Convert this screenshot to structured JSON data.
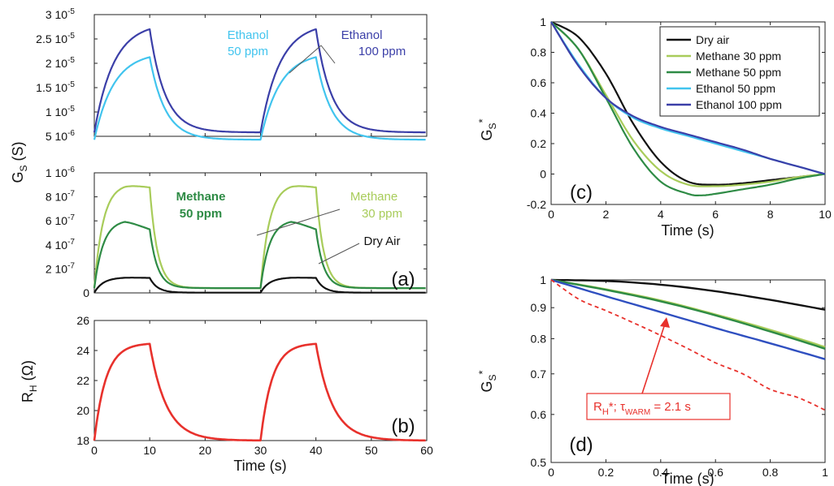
{
  "colors": {
    "ethanol_50": "#41C4EE",
    "ethanol_100": "#3B3FA8",
    "methane_30": "#A8CC5A",
    "methane_50": "#2E8B45",
    "dry_air": "#111111",
    "heater": "#E8312C",
    "ethanol_100_d": "#2F4FC0"
  },
  "chart_data": [
    {
      "id": "a_top",
      "type": "line",
      "ylim": [
        5e-06,
        3e-05
      ],
      "xlim": [
        0,
        60
      ],
      "y_tick_labels": [
        {
          "v": 5e-06,
          "text": "5 10"
        },
        {
          "v": 1e-05,
          "text": "1 10"
        },
        {
          "v": 1.5e-05,
          "text": "1.5 10"
        },
        {
          "v": 2e-05,
          "text": "2 10"
        },
        {
          "v": 2.5e-05,
          "text": "2.5 10"
        },
        {
          "v": 3e-05,
          "text": "3 10"
        }
      ],
      "y_tick_exponents": [
        "-6",
        "-5",
        "-5",
        "-5",
        "-5",
        "-5"
      ],
      "series_params": [
        {
          "color_key": "ethanol_50",
          "base": 4.3e-06,
          "amp": 1.8e-05,
          "tau_rise": 3.5,
          "tau_fall": 2.8
        },
        {
          "color_key": "ethanol_100",
          "base": 5.8e-06,
          "amp": 2.25e-05,
          "tau_rise": 3.5,
          "tau_fall": 2.8
        }
      ],
      "annotations": [
        {
          "lines": [
            "Ethanol",
            "50 ppm"
          ],
          "color_key": "ethanol_50"
        },
        {
          "lines": [
            "Ethanol",
            "100 ppm"
          ],
          "color_key": "ethanol_100"
        }
      ]
    },
    {
      "id": "a_bottom",
      "type": "line",
      "ylim": [
        0,
        1e-06
      ],
      "xlim": [
        0,
        60
      ],
      "y_tick_labels": [
        {
          "v": 0,
          "text": "0"
        },
        {
          "v": 2e-07,
          "text": "2 10"
        },
        {
          "v": 4e-07,
          "text": "4 10"
        },
        {
          "v": 6e-07,
          "text": "6 10"
        },
        {
          "v": 8e-07,
          "text": "8 10"
        },
        {
          "v": 1e-06,
          "text": "1 10"
        }
      ],
      "y_tick_exponents": [
        "",
        "-7",
        "-7",
        "-7",
        "-7",
        "-6"
      ],
      "panel_label": "(a)",
      "series_params": [
        {
          "color_key": "methane_30",
          "base": 4e-08,
          "peak": 9.1e-07,
          "end": 8.8e-07
        },
        {
          "color_key": "methane_50",
          "base": 4e-08,
          "peak": 6.1e-07,
          "end": 5.3e-07
        },
        {
          "color_key": "dry_air",
          "base": 2e-09,
          "peak": 1.3e-07,
          "end": 1.25e-07
        }
      ],
      "annotations": [
        {
          "lines": [
            "Methane",
            "50 ppm"
          ],
          "color_key": "methane_50"
        },
        {
          "lines": [
            "Methane",
            "30 ppm"
          ],
          "color_key": "methane_30"
        },
        {
          "lines": [
            "Dry Air"
          ],
          "color_key": "dry_air"
        }
      ]
    },
    {
      "id": "b",
      "type": "line",
      "ylim": [
        18,
        26
      ],
      "xlim": [
        0,
        60
      ],
      "yticks": [
        18,
        20,
        22,
        24,
        26
      ],
      "xticks": [
        0,
        10,
        20,
        30,
        40,
        50,
        60
      ],
      "panel_label": "(b)",
      "series_params": [
        {
          "color_key": "heater",
          "base": 18.0,
          "amp": 6.5,
          "tau_rise": 2.1,
          "tau_fall": 3.0
        }
      ]
    },
    {
      "id": "c",
      "type": "line",
      "xlim": [
        0,
        10
      ],
      "ylim": [
        -0.2,
        1
      ],
      "xticks": [
        0,
        2,
        4,
        6,
        8,
        10
      ],
      "yticks": [
        -0.2,
        0,
        0.2,
        0.4,
        0.6,
        0.8,
        1
      ],
      "xlabel": "Time (s)",
      "panel_label": "(c)",
      "legend": [
        {
          "name": "Dry air",
          "color_key": "dry_air"
        },
        {
          "name": "Methane 30 ppm",
          "color_key": "methane_30"
        },
        {
          "name": "Methane 50 ppm",
          "color_key": "methane_50"
        },
        {
          "name": "Ethanol 50 ppm",
          "color_key": "ethanol_50"
        },
        {
          "name": "Ethanol 100 ppm",
          "color_key": "ethanol_100"
        }
      ],
      "series": [
        {
          "color_key": "dry_air",
          "x": [
            0,
            1,
            2,
            3,
            4,
            5,
            6,
            7,
            8,
            9,
            10
          ],
          "y": [
            1,
            0.9,
            0.66,
            0.33,
            0.08,
            -0.05,
            -0.07,
            -0.06,
            -0.04,
            -0.02,
            0
          ]
        },
        {
          "color_key": "methane_30",
          "x": [
            0,
            1,
            2,
            3,
            4,
            5,
            6,
            7,
            8,
            9,
            10
          ],
          "y": [
            1,
            0.82,
            0.52,
            0.22,
            0.02,
            -0.07,
            -0.08,
            -0.07,
            -0.05,
            -0.02,
            0
          ]
        },
        {
          "color_key": "methane_50",
          "x": [
            0,
            1,
            2,
            3,
            4,
            5,
            5.5,
            6,
            7,
            8,
            9,
            10
          ],
          "y": [
            1,
            0.82,
            0.5,
            0.17,
            -0.05,
            -0.13,
            -0.14,
            -0.13,
            -0.1,
            -0.07,
            -0.03,
            0
          ]
        },
        {
          "color_key": "ethanol_50",
          "x": [
            0,
            1,
            2,
            3,
            4,
            5,
            6,
            7,
            8,
            9,
            10
          ],
          "y": [
            1,
            0.72,
            0.5,
            0.37,
            0.3,
            0.25,
            0.2,
            0.15,
            0.1,
            0.05,
            0
          ]
        },
        {
          "color_key": "ethanol_100",
          "x": [
            0,
            1,
            2,
            3,
            4,
            5,
            6,
            7,
            8,
            9,
            10
          ],
          "y": [
            1,
            0.71,
            0.5,
            0.38,
            0.31,
            0.26,
            0.21,
            0.16,
            0.1,
            0.05,
            0
          ]
        }
      ]
    },
    {
      "id": "d",
      "type": "line",
      "scale": "log",
      "xlim": [
        0,
        1
      ],
      "ylim": [
        0.5,
        1
      ],
      "xticks": [
        0,
        0.2,
        0.4,
        0.6,
        0.8,
        1
      ],
      "yticks": [
        0.5,
        0.6,
        0.7,
        0.8,
        0.9,
        1
      ],
      "xlabel": "Time (s)",
      "panel_label": "(d)",
      "annotation": {
        "text_main": "R",
        "text_sub1": "H",
        "text_mid": "*; τ",
        "text_sub2": "WARM",
        "text_end": " = 2.1 s"
      },
      "series": [
        {
          "color_key": "dry_air",
          "x": [
            0,
            0.2,
            0.4,
            0.6,
            0.8,
            1
          ],
          "y": [
            1,
            0.996,
            0.982,
            0.958,
            0.927,
            0.893
          ],
          "dash": false
        },
        {
          "color_key": "methane_30",
          "x": [
            0,
            0.2,
            0.4,
            0.6,
            0.8,
            1
          ],
          "y": [
            1,
            0.965,
            0.925,
            0.877,
            0.827,
            0.775
          ],
          "dash": false
        },
        {
          "color_key": "methane_50",
          "x": [
            0,
            0.2,
            0.4,
            0.6,
            0.8,
            1
          ],
          "y": [
            1,
            0.963,
            0.922,
            0.874,
            0.822,
            0.77
          ],
          "dash": false
        },
        {
          "color_key": "ethanol_100_d",
          "x": [
            0,
            0.2,
            0.4,
            0.6,
            0.8,
            1
          ],
          "y": [
            1,
            0.94,
            0.885,
            0.833,
            0.786,
            0.74
          ],
          "dash": false
        },
        {
          "color_key": "heater",
          "x": [
            0,
            0.1,
            0.2,
            0.3,
            0.4,
            0.5,
            0.6,
            0.7,
            0.8,
            0.9,
            1
          ],
          "y": [
            1,
            0.93,
            0.89,
            0.85,
            0.81,
            0.77,
            0.73,
            0.7,
            0.66,
            0.64,
            0.61
          ],
          "dash": true
        }
      ]
    }
  ],
  "axes": {
    "a_ylabel_main": "G",
    "a_ylabel_sub": "S",
    "a_ylabel_unit": " (S)",
    "b_ylabel_main": "R",
    "b_ylabel_sub": "H",
    "b_ylabel_unit": " (Ω)",
    "b_xlabel": "Time (s)",
    "c_ylabel_main": "G",
    "c_ylabel_sub": "S",
    "c_ylabel_sup": "*",
    "d_ylabel_main": "G",
    "d_ylabel_sub": "S",
    "d_ylabel_sup": "*"
  }
}
